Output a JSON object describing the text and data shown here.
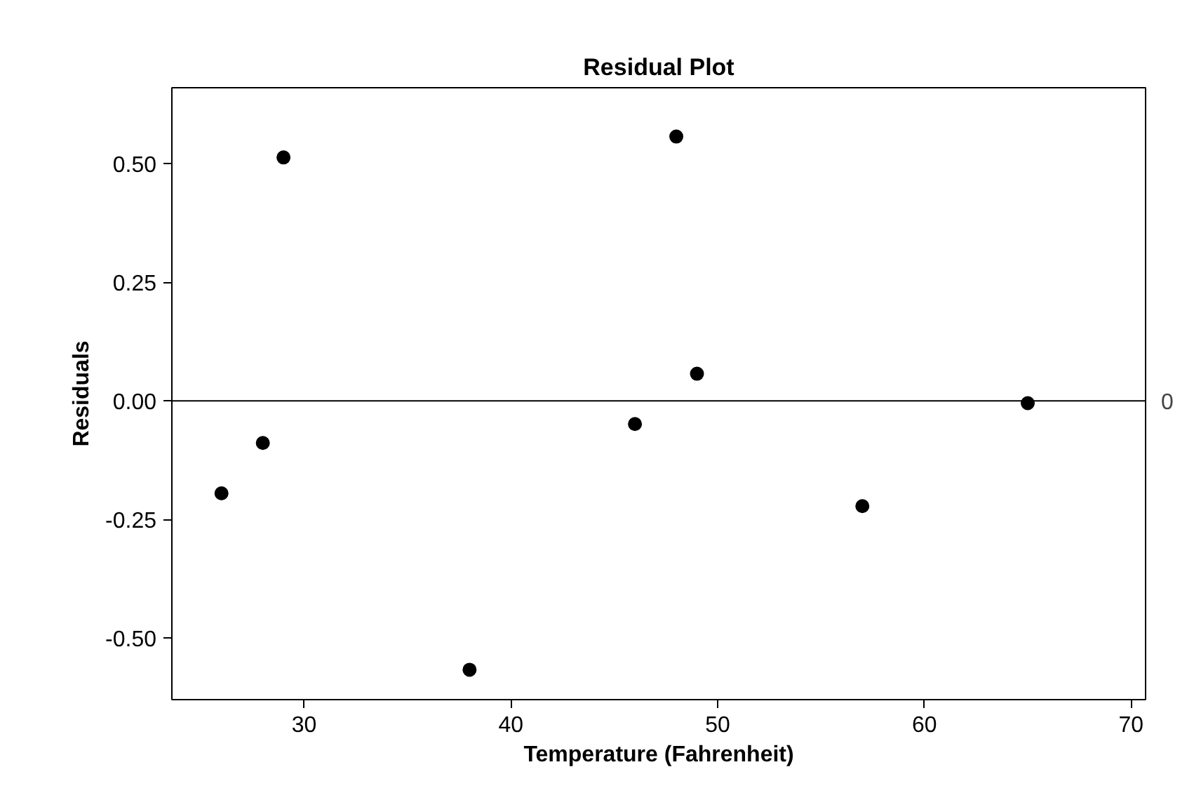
{
  "chart_data": {
    "type": "scatter",
    "title": "Residual Plot",
    "xlabel": "Temperature (Fahrenheit)",
    "ylabel": "Residuals",
    "x": [
      26,
      28,
      29,
      38,
      46,
      48,
      49,
      57,
      65
    ],
    "series": [
      {
        "color": "#000000",
        "values": [
          -0.195,
          -0.089,
          0.513,
          -0.567,
          -0.049,
          0.557,
          0.057,
          -0.222,
          -0.005
        ]
      }
    ],
    "xlim": [
      23.6,
      70.7
    ],
    "ylim": [
      -0.63,
      0.66
    ],
    "xticks": [
      30,
      40,
      50,
      60,
      70
    ],
    "yticks": [
      {
        "value": -0.5,
        "label": "-0.50"
      },
      {
        "value": -0.25,
        "label": "-0.25"
      },
      {
        "value": 0,
        "label": "0.00"
      },
      {
        "value": 0.25,
        "label": "0.25"
      },
      {
        "value": 0.5,
        "label": "0.50"
      }
    ],
    "ref_lines": [
      {
        "axis": "y",
        "value": 0,
        "label": "0",
        "color": "#000000"
      }
    ],
    "grid": false,
    "marker": "circle"
  }
}
